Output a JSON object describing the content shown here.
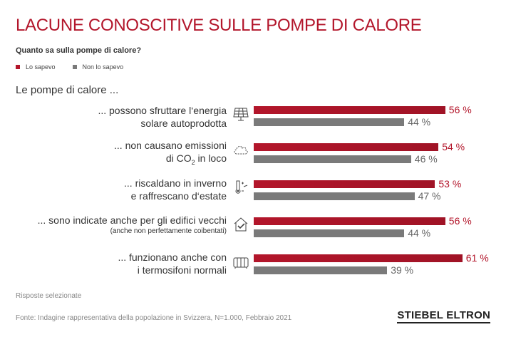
{
  "chart_data": {
    "type": "bar",
    "orientation": "horizontal",
    "title": "LACUNE CONOSCITIVE SULLE POMPE DI CALORE",
    "subtitle": "Quanto sa sulla pompe di calore?",
    "section_label": "Le pompe di calore ...",
    "xlim": [
      0,
      100
    ],
    "colors": {
      "Lo sapevo": "#b3162b",
      "Non lo sapevo": "#7a7a7a"
    },
    "categories": [
      {
        "line1": "... possono sfruttare l‘energia",
        "line2": "solare autoprodotta",
        "icon": "solar-panel-icon"
      },
      {
        "line1": "... non causano emissioni",
        "line2_pre": "di CO",
        "line2_sub": "2",
        "line2_post": " in loco",
        "icon": "cloud-icon"
      },
      {
        "line1": "... riscaldano in inverno",
        "line2": "e raffrescano d‘estate",
        "icon": "thermometer-icon"
      },
      {
        "line1": "... sono indicate anche per gli edifici vecchi",
        "note": "(anche non perfettamente coibentati)",
        "icon": "house-check-icon"
      },
      {
        "line1": "... funzionano anche con",
        "line2": "i termosifoni normali",
        "icon": "radiator-icon"
      }
    ],
    "series": [
      {
        "name": "Lo sapevo",
        "values": [
          56,
          54,
          53,
          56,
          61
        ],
        "labels": [
          "56 %",
          "54 %",
          "53 %",
          "56 %",
          "61 %"
        ]
      },
      {
        "name": "Non lo sapevo",
        "values": [
          44,
          46,
          47,
          44,
          39
        ],
        "labels": [
          "44 %",
          "46 %",
          "47 %",
          "44 %",
          "39 %"
        ]
      }
    ],
    "legend": {
      "placement": "top-left",
      "entries": [
        "Lo sapevo",
        "Non lo sapevo"
      ]
    }
  },
  "footnote": "Risposte selezionate",
  "source": "Fonte: Indagine rappresentativa della popolazione in Svizzera, N=1.000, Febbraio 2021",
  "logo": "STIEBEL ELTRON"
}
